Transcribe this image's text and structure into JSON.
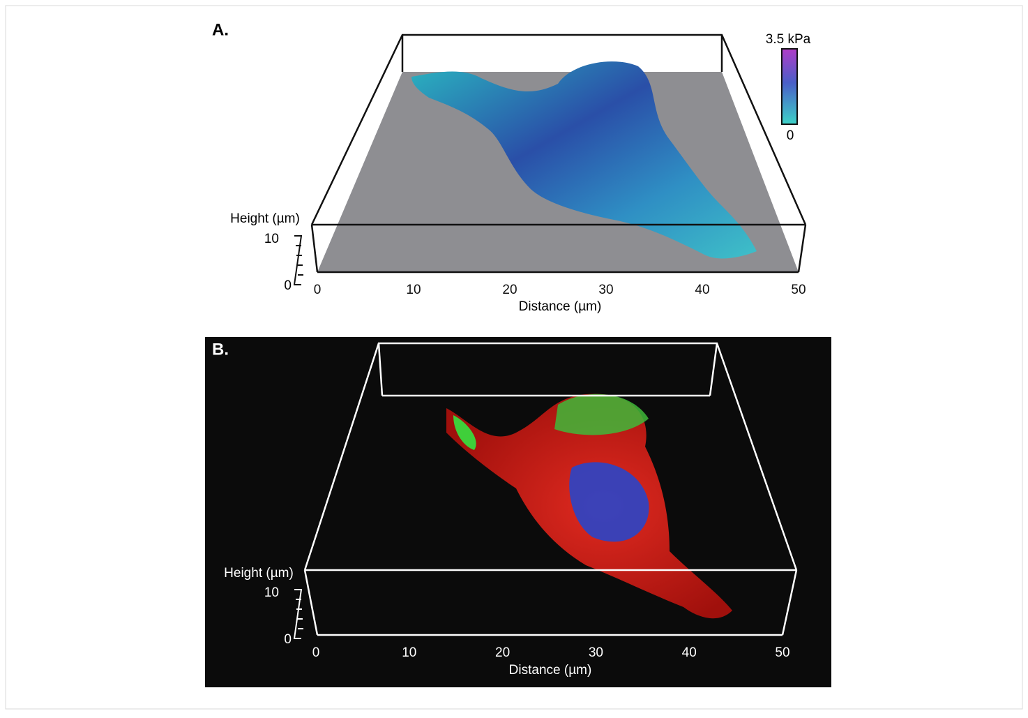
{
  "panels": [
    {
      "label": "A.",
      "colorbar": {
        "max_label": "3.5 kPa",
        "min_label": "0"
      },
      "height_axis": {
        "label": "Height (µm)",
        "ticks": [
          10,
          0
        ]
      },
      "distance_axis": {
        "label": "Distance (µm)",
        "ticks": [
          0,
          10,
          20,
          30,
          40,
          50
        ]
      }
    },
    {
      "label": "B.",
      "height_axis": {
        "label": "Height (µm)",
        "ticks": [
          10,
          0
        ]
      },
      "distance_axis": {
        "label": "Distance (µm)",
        "ticks": [
          0,
          10,
          20,
          30,
          40,
          50
        ]
      }
    }
  ]
}
